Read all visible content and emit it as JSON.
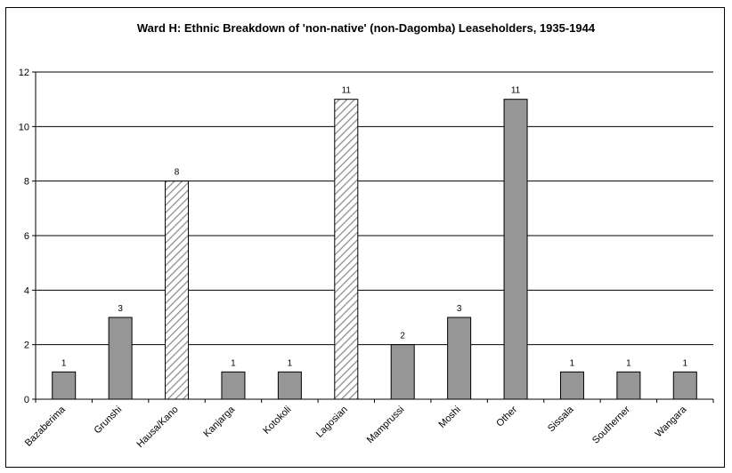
{
  "chart_data": {
    "type": "bar",
    "title": "Ward H: Ethnic Breakdown of 'non-native' (non-Dagomba) Leaseholders, 1935-1944",
    "xlabel": "",
    "ylabel": "",
    "ylim": [
      0,
      12
    ],
    "yticks": [
      "0",
      "2",
      "4",
      "6",
      "8",
      "10",
      "12"
    ],
    "grid": "horizontal",
    "legend": "none",
    "categories": [
      "Bazaberima",
      "Grunshi",
      "Hausa/Kano",
      "Kanjarga",
      "Kotokoli",
      "Lagosian",
      "Mamprussi",
      "Moshi",
      "Other",
      "Sissala",
      "Southerner",
      "Wangara"
    ],
    "values": [
      1,
      3,
      8,
      1,
      1,
      11,
      2,
      3,
      11,
      1,
      1,
      1
    ],
    "data_labels": [
      "1",
      "3",
      "8",
      "1",
      "1",
      "11",
      "2",
      "3",
      "11",
      "1",
      "1",
      "1"
    ],
    "bar_fill": [
      "solid",
      "solid",
      "hatched",
      "solid",
      "solid",
      "hatched",
      "solid",
      "solid",
      "solid",
      "solid",
      "solid",
      "solid"
    ],
    "colors": {
      "bar": "#969696",
      "hatch_stroke": "#8c8c8c",
      "hatch_background": "#ffffff",
      "gridline": "#000000",
      "outline": "#000000"
    }
  }
}
